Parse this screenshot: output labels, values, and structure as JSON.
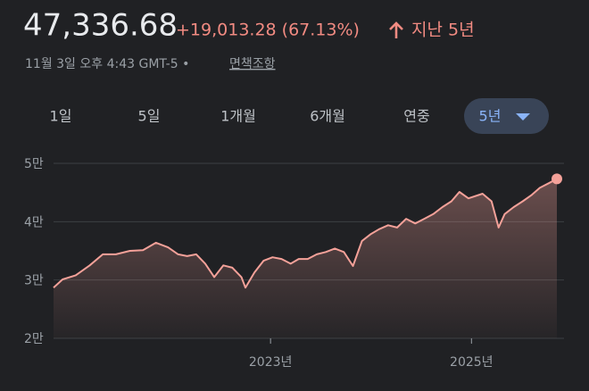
{
  "header": {
    "price": "47,336.68",
    "change": "+19,013.28 (67.13%)",
    "period": "지난 5년",
    "timestamp": "11월 3일 오후 4:43 GMT-5 •",
    "disclaimer": "면책조항"
  },
  "tabs": [
    "1일",
    "5일",
    "1개월",
    "6개월",
    "연중",
    "5년"
  ],
  "chart_data": {
    "type": "area",
    "color": "#f4a199",
    "grid": true,
    "x": [
      2020.84,
      2020.93,
      2021.06,
      2021.2,
      2021.33,
      2021.46,
      2021.6,
      2021.73,
      2021.86,
      2021.98,
      2022.08,
      2022.17,
      2022.26,
      2022.35,
      2022.44,
      2022.53,
      2022.62,
      2022.71,
      2022.75,
      2022.84,
      2022.93,
      2023.02,
      2023.11,
      2023.2,
      2023.28,
      2023.37,
      2023.46,
      2023.55,
      2023.64,
      2023.73,
      2023.82,
      2023.91,
      2024.0,
      2024.08,
      2024.17,
      2024.26,
      2024.35,
      2024.44,
      2024.53,
      2024.62,
      2024.71,
      2024.8,
      2024.88,
      2024.97,
      2025.11,
      2025.2,
      2025.27,
      2025.33,
      2025.42,
      2025.51,
      2025.6,
      2025.68,
      2025.77,
      2025.85
    ],
    "values": [
      28700,
      30100,
      30800,
      32500,
      34400,
      34400,
      35000,
      35100,
      36400,
      35600,
      34400,
      34100,
      34400,
      32800,
      30500,
      32500,
      32100,
      30500,
      28700,
      31300,
      33300,
      33900,
      33600,
      32800,
      33600,
      33600,
      34400,
      34800,
      35400,
      34800,
      32400,
      36700,
      37900,
      38700,
      39400,
      39000,
      40500,
      39700,
      40500,
      41300,
      42500,
      43500,
      45100,
      44000,
      44800,
      43500,
      39000,
      41300,
      42500,
      43500,
      44600,
      45800,
      46600,
      47336.68
    ],
    "xlim": [
      2020.84,
      2025.85
    ],
    "xticks": [
      {
        "value": 2023,
        "label": "2023년"
      },
      {
        "value": 2025,
        "label": "2025년"
      }
    ],
    "ylim": [
      20000,
      50000
    ],
    "yticks": [
      {
        "value": 50000,
        "label": "5만"
      },
      {
        "value": 40000,
        "label": "4만"
      },
      {
        "value": 30000,
        "label": "3만"
      },
      {
        "value": 20000,
        "label": "2만"
      }
    ]
  }
}
